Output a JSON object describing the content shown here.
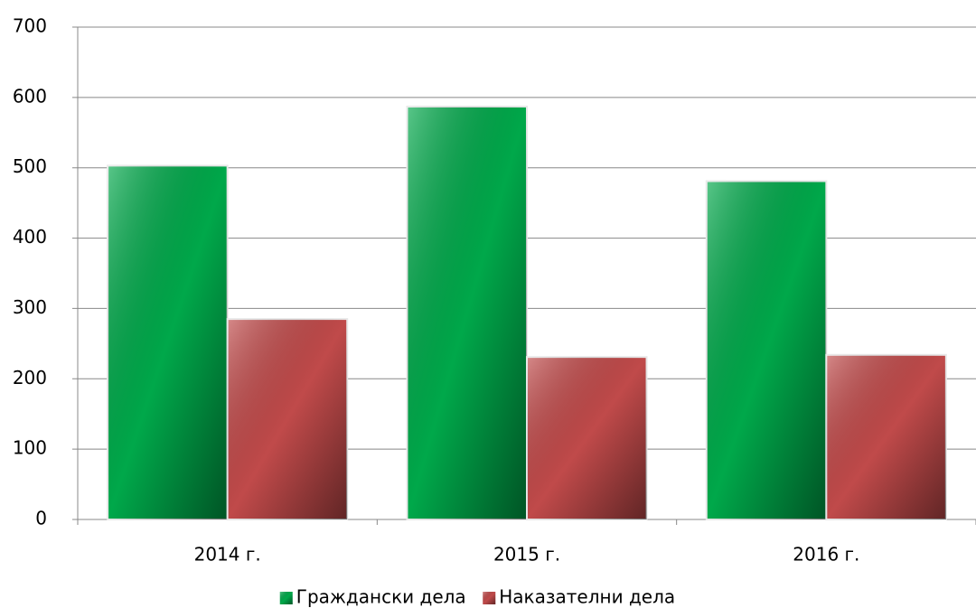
{
  "chart_data": {
    "type": "bar",
    "categories": [
      "2014 г.",
      "2015 г.",
      "2016 г."
    ],
    "series": [
      {
        "name": "Граждански дела",
        "color": "#00a84a",
        "values": [
          503,
          587,
          481
        ]
      },
      {
        "name": "Наказателни дела",
        "color": "#c04a4a",
        "values": [
          285,
          231,
          234
        ]
      }
    ],
    "ylim": [
      0,
      700
    ],
    "yticks": [
      0,
      100,
      200,
      300,
      400,
      500,
      600,
      700
    ],
    "grid": true,
    "legend": "bottom"
  }
}
